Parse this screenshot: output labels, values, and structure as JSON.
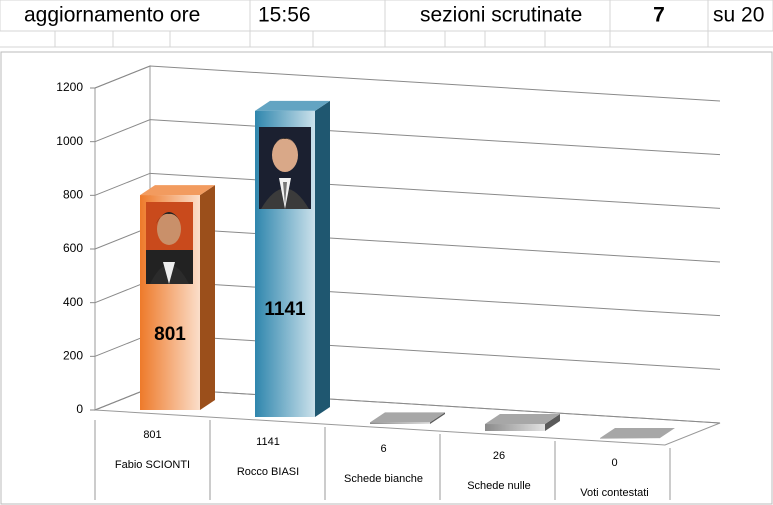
{
  "header": {
    "cells": [
      "aggiornamento ore",
      "15:56",
      "sezioni scrutinate",
      "7",
      "su 20"
    ]
  },
  "chart_data": {
    "type": "bar",
    "categories": [
      "Fabio SCIONTI",
      "Rocco BIASI",
      "Schede bianche",
      "Schede nulle",
      "Voti contestati"
    ],
    "values": [
      801,
      1141,
      6,
      26,
      0
    ],
    "colors": [
      "#ee7a2a",
      "#2f86ad",
      "#8a8a8a",
      "#8a8a8a",
      "#8a8a8a"
    ],
    "ylim": [
      0,
      1200
    ],
    "yticks": [
      0,
      200,
      400,
      600,
      800,
      1000,
      1200
    ],
    "grid": true
  }
}
